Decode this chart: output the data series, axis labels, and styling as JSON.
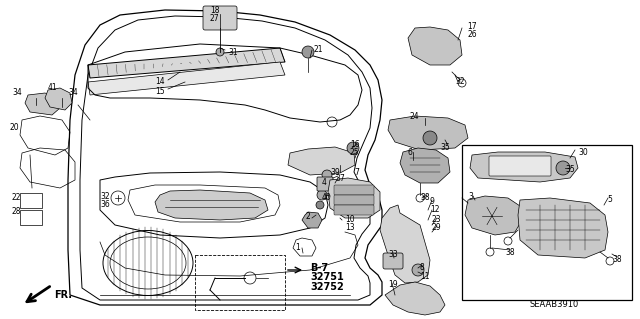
{
  "bg_color": "#ffffff",
  "diagram_code": "SEAAB3910",
  "b7_label": "B-7",
  "part1": "32751",
  "part2": "32752",
  "fr_label": "FR."
}
